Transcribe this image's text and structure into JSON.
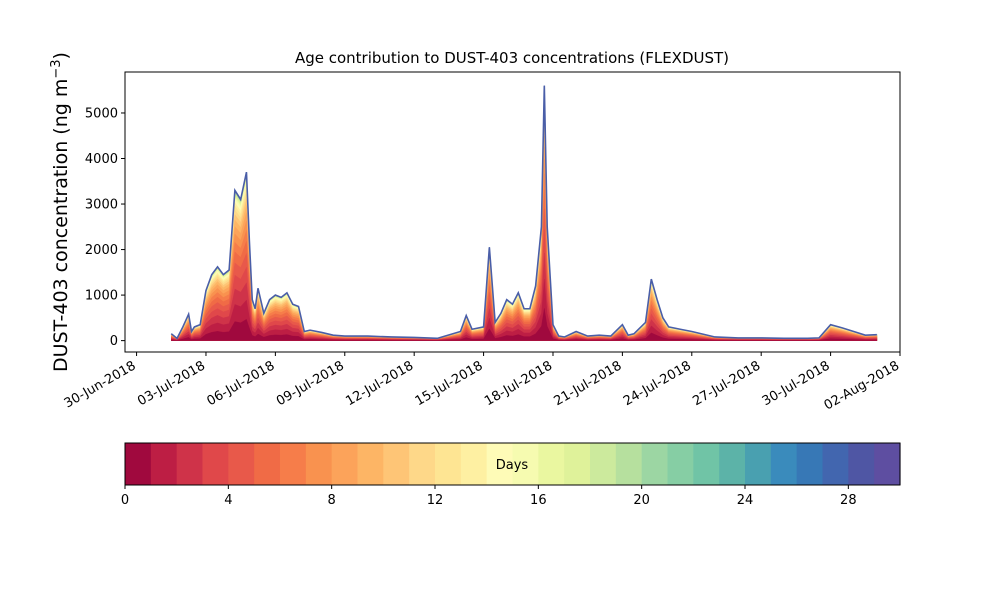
{
  "chart_data": {
    "type": "area",
    "title": "Age contribution to DUST-403 concentrations (FLEXDUST)",
    "ylabel": "DUST-403 concentration (ng m",
    "ylabel_unit_exponent": "−3",
    "ylabel_close": ")",
    "xlabel": "",
    "stacked": true,
    "start_date": "2018-07-01",
    "end_date": "2018-08-01",
    "ylim": [
      -250,
      5900
    ],
    "yticks": [
      0,
      1000,
      2000,
      3000,
      4000,
      5000
    ],
    "xtick_labels": [
      "30-Jun-2018",
      "03-Jul-2018",
      "06-Jul-2018",
      "09-Jul-2018",
      "12-Jul-2018",
      "15-Jul-2018",
      "18-Jul-2018",
      "21-Jul-2018",
      "24-Jul-2018",
      "27-Jul-2018",
      "30-Jul-2018",
      "02-Aug-2018"
    ],
    "series_note": "",
    "total": {
      "x": [
        "2018-07-01 12:00",
        "2018-07-01 18:00",
        "2018-07-02 00:00",
        "2018-07-02 06:00",
        "2018-07-02 09:00",
        "2018-07-02 12:00",
        "2018-07-02 18:00",
        "2018-07-03 00:00",
        "2018-07-03 06:00",
        "2018-07-03 12:00",
        "2018-07-03 18:00",
        "2018-07-04 00:00",
        "2018-07-04 06:00",
        "2018-07-04 12:00",
        "2018-07-04 18:00",
        "2018-07-04 21:00",
        "2018-07-05 00:00",
        "2018-07-05 03:00",
        "2018-07-05 06:00",
        "2018-07-05 12:00",
        "2018-07-05 18:00",
        "2018-07-06 00:00",
        "2018-07-06 06:00",
        "2018-07-06 12:00",
        "2018-07-06 18:00",
        "2018-07-07 00:00",
        "2018-07-07 06:00",
        "2018-07-07 12:00",
        "2018-07-08 00:00",
        "2018-07-08 12:00",
        "2018-07-09 00:00",
        "2018-07-10 00:00",
        "2018-07-11 00:00",
        "2018-07-12 00:00",
        "2018-07-13 00:00",
        "2018-07-14 00:00",
        "2018-07-14 06:00",
        "2018-07-14 12:00",
        "2018-07-15 00:00",
        "2018-07-15 06:00",
        "2018-07-15 12:00",
        "2018-07-15 18:00",
        "2018-07-16 00:00",
        "2018-07-16 06:00",
        "2018-07-16 12:00",
        "2018-07-16 18:00",
        "2018-07-17 00:00",
        "2018-07-17 06:00",
        "2018-07-17 12:00",
        "2018-07-17 15:00",
        "2018-07-17 18:00",
        "2018-07-18 00:00",
        "2018-07-18 06:00",
        "2018-07-18 12:00",
        "2018-07-19 00:00",
        "2018-07-19 12:00",
        "2018-07-20 00:00",
        "2018-07-20 12:00",
        "2018-07-21 00:00",
        "2018-07-21 06:00",
        "2018-07-21 12:00",
        "2018-07-22 00:00",
        "2018-07-22 06:00",
        "2018-07-22 12:00",
        "2018-07-22 18:00",
        "2018-07-23 00:00",
        "2018-07-23 12:00",
        "2018-07-24 00:00",
        "2018-07-25 00:00",
        "2018-07-26 00:00",
        "2018-07-27 00:00",
        "2018-07-28 00:00",
        "2018-07-29 00:00",
        "2018-07-29 12:00",
        "2018-07-30 00:00",
        "2018-07-30 12:00",
        "2018-07-31 00:00",
        "2018-07-31 12:00",
        "2018-08-01 00:00"
      ],
      "y": [
        150,
        50,
        300,
        580,
        200,
        300,
        350,
        1100,
        1450,
        1620,
        1450,
        1550,
        3300,
        3100,
        3700,
        2200,
        900,
        700,
        1150,
        600,
        900,
        1000,
        950,
        1050,
        800,
        750,
        200,
        230,
        180,
        120,
        100,
        100,
        80,
        70,
        50,
        200,
        550,
        250,
        300,
        2050,
        400,
        600,
        900,
        800,
        1050,
        700,
        700,
        1200,
        2500,
        5600,
        2500,
        350,
        100,
        80,
        200,
        100,
        120,
        100,
        350,
        120,
        150,
        400,
        1350,
        900,
        500,
        300,
        250,
        200,
        80,
        60,
        60,
        50,
        50,
        60,
        350,
        280,
        200,
        120,
        130
      ]
    },
    "colorbar": {
      "label": "Days",
      "ticks": [
        0,
        4,
        8,
        12,
        16,
        20,
        24,
        28
      ],
      "range": [
        0,
        30
      ],
      "colors": [
        "#a0093e",
        "#bd1e44",
        "#cf3349",
        "#e0484a",
        "#e8594a",
        "#f06b46",
        "#f67d4a",
        "#f9924f",
        "#fca35a",
        "#fdb565",
        "#fec576",
        "#fed889",
        "#fee593",
        "#fef0a2",
        "#fefbb7",
        "#f6fbb0",
        "#eaf7a0",
        "#dff29a",
        "#ccea9d",
        "#b6e09e",
        "#9cd6a3",
        "#86cea4",
        "#70c4a6",
        "#5cb3a8",
        "#49a0b0",
        "#3a8bbc",
        "#3778b6",
        "#4266af",
        "#4f56a4",
        "#5e4ea1"
      ]
    }
  }
}
